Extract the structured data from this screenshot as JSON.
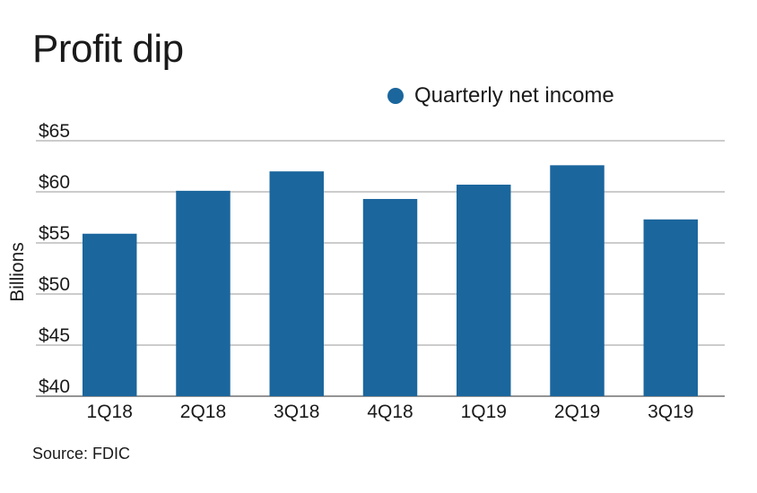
{
  "title": "Profit dip",
  "source": "Source: FDIC",
  "colors": {
    "bar": "#1b669d",
    "grid": "#9a9a9a",
    "axis": "#555555"
  },
  "chart_data": {
    "type": "bar",
    "title": "Profit dip",
    "categories": [
      "1Q18",
      "2Q18",
      "3Q18",
      "4Q18",
      "1Q19",
      "2Q19",
      "3Q19"
    ],
    "series": [
      {
        "name": "Quarterly net income",
        "values": [
          55.9,
          60.1,
          62.0,
          59.3,
          60.7,
          62.6,
          57.3
        ]
      }
    ],
    "ylabel": "Billions",
    "ylim": [
      40,
      65
    ],
    "yticks": [
      40,
      45,
      50,
      55,
      60,
      65
    ],
    "ytick_labels": [
      "$40",
      "$45",
      "$50",
      "$55",
      "$60",
      "$65"
    ],
    "grid": true,
    "legend_position": "top-right"
  }
}
